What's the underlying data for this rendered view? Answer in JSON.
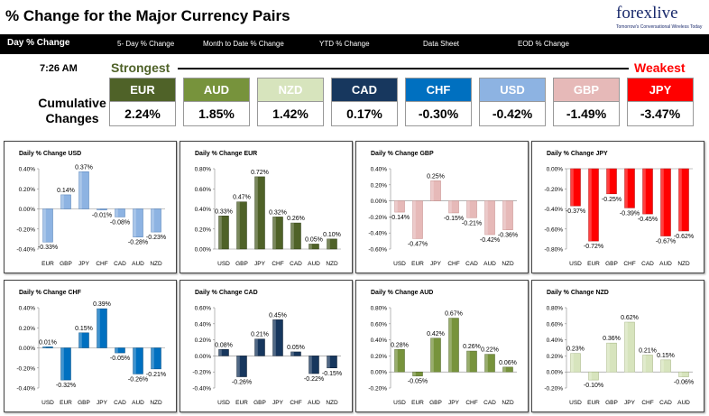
{
  "header": {
    "title": "% Change for the Major Currency Pairs",
    "logo_main": "forexlive",
    "logo_sub": "Tomorrow's Conversational Wireless Today"
  },
  "tabs": [
    {
      "label": "Day % Change",
      "active": true
    },
    {
      "label": "5- Day % Change",
      "active": false
    },
    {
      "label": "Month to Date % Change",
      "active": false
    },
    {
      "label": "YTD % Change",
      "active": false
    },
    {
      "label": "Data Sheet",
      "active": false
    },
    {
      "label": "EOD % Change",
      "active": false
    }
  ],
  "summary": {
    "time": "7:26 AM",
    "strongest_label": "Strongest",
    "weakest_label": "Weakest",
    "cumulative_label_1": "Cumulative",
    "cumulative_label_2": "Changes",
    "currencies": [
      {
        "name": "EUR",
        "value": "2.24%",
        "color": "#4f6228"
      },
      {
        "name": "AUD",
        "value": "1.85%",
        "color": "#77933c"
      },
      {
        "name": "NZD",
        "value": "1.42%",
        "color": "#d7e4bd"
      },
      {
        "name": "CAD",
        "value": "0.17%",
        "color": "#17375e"
      },
      {
        "name": "CHF",
        "value": "-0.30%",
        "color": "#0070c0"
      },
      {
        "name": "USD",
        "value": "-0.42%",
        "color": "#8db3e2"
      },
      {
        "name": "GBP",
        "value": "-1.49%",
        "color": "#e6b9b8"
      },
      {
        "name": "JPY",
        "value": "-3.47%",
        "color": "#ff0000"
      }
    ]
  },
  "chart_data": [
    {
      "type": "bar",
      "title": "Daily % Change USD",
      "categories": [
        "EUR",
        "GBP",
        "JPY",
        "CHF",
        "CAD",
        "AUD",
        "NZD"
      ],
      "values": [
        -0.33,
        0.14,
        0.37,
        -0.01,
        -0.08,
        -0.28,
        -0.23
      ],
      "labels": [
        "-0.33%",
        "0.14%",
        "0.37%",
        "-0.01%",
        "-0.08%",
        "-0.28%",
        "-0.23%"
      ],
      "ticks": [
        "0.40%",
        "0.20%",
        "0.00%",
        "-0.20%",
        "-0.40%"
      ],
      "ylim": [
        -0.4,
        0.4
      ],
      "color": "#8db3e2",
      "dark": "#4a7ab5",
      "background": "#ffffff"
    },
    {
      "type": "bar",
      "title": "Daily % Change EUR",
      "categories": [
        "USD",
        "GBP",
        "JPY",
        "CHF",
        "CAD",
        "AUD",
        "NZD"
      ],
      "values": [
        0.33,
        0.47,
        0.72,
        0.32,
        0.26,
        0.05,
        0.1
      ],
      "labels": [
        "0.33%",
        "0.47%",
        "0.72%",
        "0.32%",
        "0.26%",
        "0.05%",
        "0.10%"
      ],
      "ticks": [
        "0.80%",
        "0.60%",
        "0.40%",
        "0.20%",
        "0.00%"
      ],
      "ylim": [
        0,
        0.8
      ],
      "color": "#4f6228",
      "dark": "#2f3c15",
      "background": "#ffffff"
    },
    {
      "type": "bar",
      "title": "Daily % Change GBP",
      "categories": [
        "USD",
        "EUR",
        "JPY",
        "CHF",
        "CAD",
        "AUD",
        "NZD"
      ],
      "values": [
        -0.14,
        -0.47,
        0.25,
        -0.15,
        -0.21,
        -0.42,
        -0.36
      ],
      "labels": [
        "-0.14%",
        "-0.47%",
        "0.25%",
        "-0.15%",
        "-0.21%",
        "-0.42%",
        "-0.36%"
      ],
      "ticks": [
        "0.40%",
        "0.20%",
        "0.00%",
        "-0.20%",
        "-0.40%",
        "-0.60%"
      ],
      "ylim": [
        -0.6,
        0.4
      ],
      "color": "#e6b9b8",
      "dark": "#c48987",
      "background": "#ffffff"
    },
    {
      "type": "bar",
      "title": "Daily % Change JPY",
      "categories": [
        "USD",
        "EUR",
        "GBP",
        "CHF",
        "CAD",
        "AUD",
        "NZD"
      ],
      "values": [
        -0.37,
        -0.72,
        -0.25,
        -0.39,
        -0.45,
        -0.67,
        -0.62
      ],
      "labels": [
        "-0.37%",
        "-0.72%",
        "-0.25%",
        "-0.39%",
        "-0.45%",
        "-0.67%",
        "-0.62%"
      ],
      "ticks": [
        "0.00%",
        "-0.20%",
        "-0.40%",
        "-0.60%",
        "-0.80%"
      ],
      "ylim": [
        -0.8,
        0
      ],
      "color": "#ff0000",
      "dark": "#b00000",
      "background": "#ffffff"
    },
    {
      "type": "bar",
      "title": "Daily % Change CHF",
      "categories": [
        "USD",
        "EUR",
        "GBP",
        "JPY",
        "CAD",
        "AUD",
        "NZD"
      ],
      "values": [
        0.01,
        -0.32,
        0.15,
        0.39,
        -0.05,
        -0.26,
        -0.21
      ],
      "labels": [
        "0.01%",
        "-0.32%",
        "0.15%",
        "0.39%",
        "-0.05%",
        "-0.26%",
        "-0.21%"
      ],
      "ticks": [
        "0.40%",
        "0.20%",
        "0.00%",
        "-0.20%",
        "-0.40%"
      ],
      "ylim": [
        -0.4,
        0.4
      ],
      "color": "#0070c0",
      "dark": "#004a80",
      "background": "#ffffff"
    },
    {
      "type": "bar",
      "title": "Daily % Change CAD",
      "categories": [
        "USD",
        "EUR",
        "GBP",
        "JPY",
        "CHF",
        "AUD",
        "NZD"
      ],
      "values": [
        0.08,
        -0.26,
        0.21,
        0.45,
        0.05,
        -0.22,
        -0.15
      ],
      "labels": [
        "0.08%",
        "-0.26%",
        "0.21%",
        "0.45%",
        "0.05%",
        "-0.22%",
        "-0.15%"
      ],
      "ticks": [
        "0.60%",
        "0.40%",
        "0.20%",
        "0.00%",
        "-0.20%",
        "-0.40%"
      ],
      "ylim": [
        -0.4,
        0.6
      ],
      "color": "#17375e",
      "dark": "#0a1a2e",
      "background": "#ffffff"
    },
    {
      "type": "bar",
      "title": "Daily % Change AUD",
      "categories": [
        "USD",
        "EUR",
        "GBP",
        "JPY",
        "CHF",
        "CAD",
        "NZD"
      ],
      "values": [
        0.28,
        -0.05,
        0.42,
        0.67,
        0.26,
        0.22,
        0.06
      ],
      "labels": [
        "0.28%",
        "-0.05%",
        "0.42%",
        "0.67%",
        "0.26%",
        "0.22%",
        "0.06%"
      ],
      "ticks": [
        "0.80%",
        "0.60%",
        "0.40%",
        "0.20%",
        "0.00%",
        "-0.20%"
      ],
      "ylim": [
        -0.2,
        0.8
      ],
      "color": "#77933c",
      "dark": "#4a5e22",
      "background": "#ffffff"
    },
    {
      "type": "bar",
      "title": "Daily % Change NZD",
      "categories": [
        "USD",
        "EUR",
        "GBP",
        "JPY",
        "CHF",
        "CAD",
        "AUD"
      ],
      "values": [
        0.23,
        -0.1,
        0.36,
        0.62,
        0.21,
        0.15,
        -0.06
      ],
      "labels": [
        "0.23%",
        "-0.10%",
        "0.36%",
        "0.62%",
        "0.21%",
        "0.15%",
        "-0.06%"
      ],
      "ticks": [
        "0.80%",
        "0.60%",
        "0.40%",
        "0.20%",
        "0.00%",
        "-0.20%"
      ],
      "ylim": [
        -0.2,
        0.8
      ],
      "color": "#d7e4bd",
      "dark": "#9fb07a",
      "background": "#ffffff"
    }
  ]
}
